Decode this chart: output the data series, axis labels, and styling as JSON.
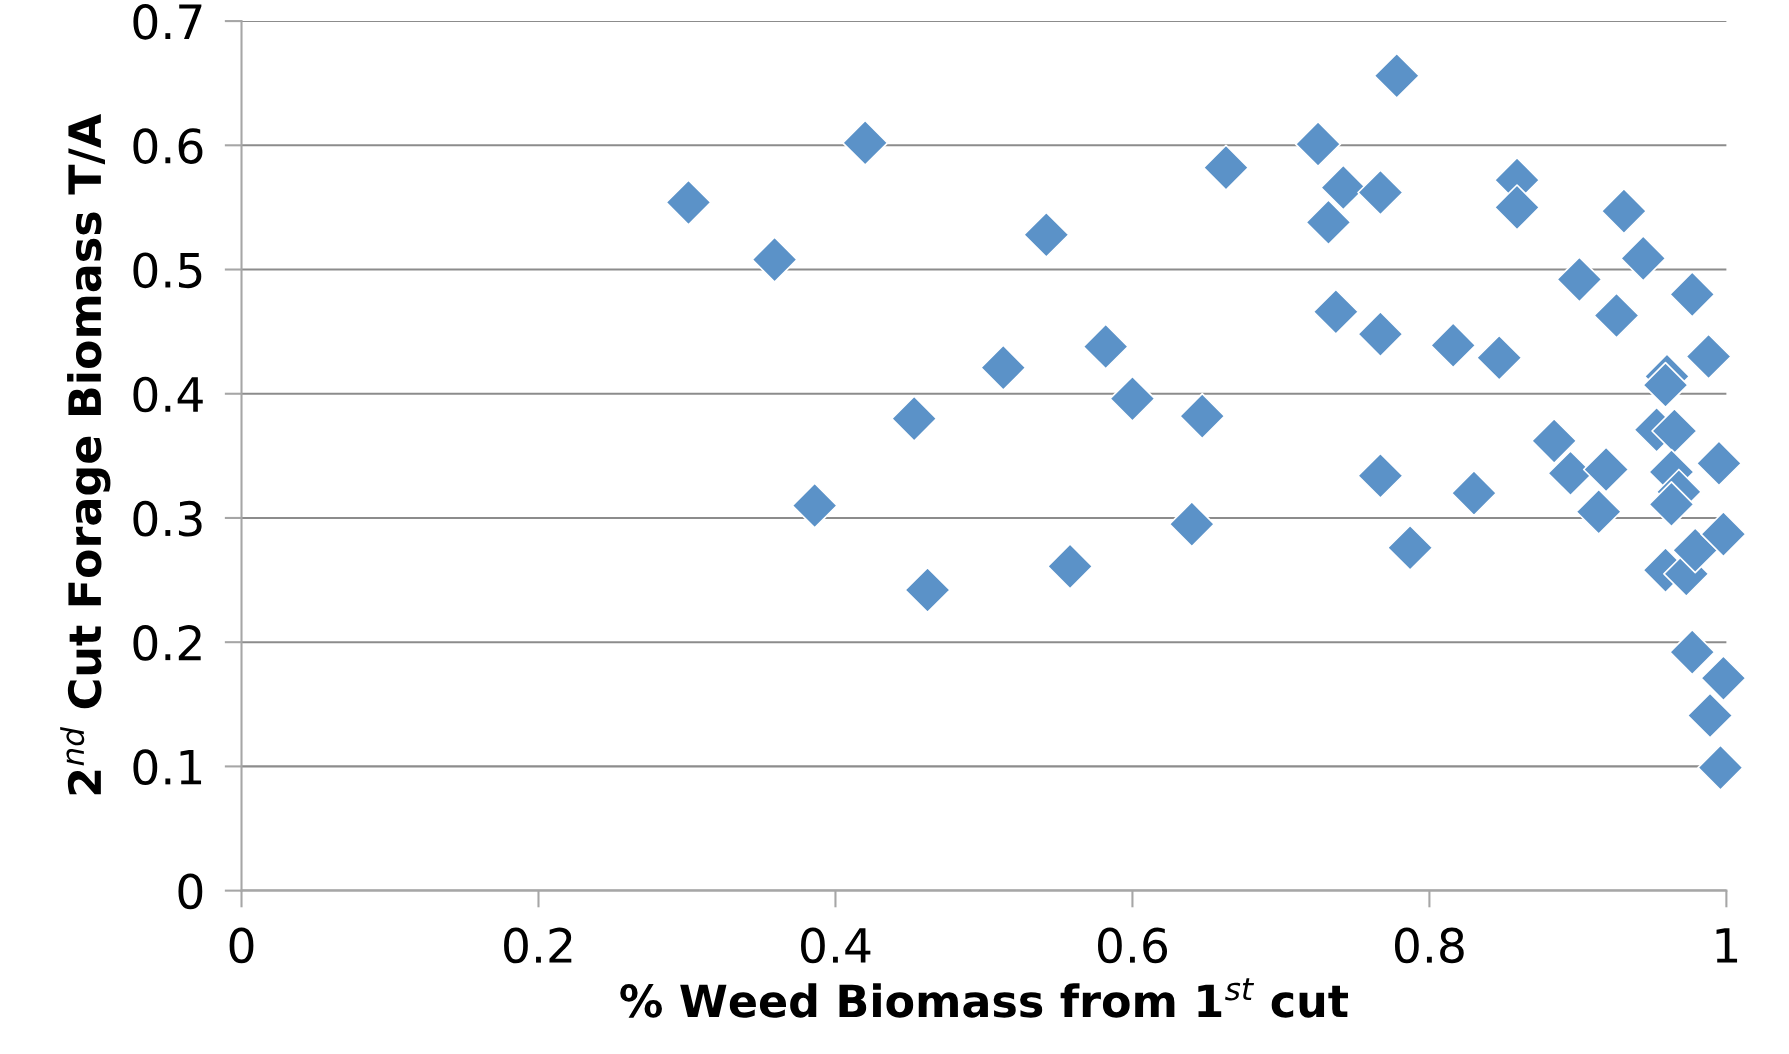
{
  "chart_data": {
    "type": "scatter",
    "xlabel": "% Weed Biomass from 1$^{st}$ cut",
    "ylabel": "2$^{nd}$ Cut Forage Biomass T/A",
    "x": [
      0.301,
      0.359,
      0.386,
      0.42,
      0.453,
      0.462,
      0.513,
      0.542,
      0.558,
      0.582,
      0.6,
      0.64,
      0.647,
      0.663,
      0.725,
      0.732,
      0.742,
      0.737,
      0.767,
      0.767,
      0.767,
      0.778,
      0.787,
      0.816,
      0.83,
      0.847,
      0.859,
      0.859,
      0.884,
      0.895,
      0.901,
      0.914,
      0.919,
      0.926,
      0.931,
      0.944,
      0.953,
      0.96,
      0.959,
      0.965,
      0.963,
      0.968,
      0.963,
      0.959,
      0.973,
      0.979,
      0.977,
      0.977,
      0.988,
      0.989,
      0.995,
      0.998,
      0.998,
      0.996
    ],
    "values": [
      0.554,
      0.508,
      0.31,
      0.602,
      0.38,
      0.242,
      0.421,
      0.528,
      0.261,
      0.438,
      0.396,
      0.295,
      0.382,
      0.582,
      0.601,
      0.538,
      0.566,
      0.466,
      0.562,
      0.448,
      0.334,
      0.656,
      0.276,
      0.439,
      0.32,
      0.429,
      0.572,
      0.55,
      0.362,
      0.336,
      0.492,
      0.305,
      0.339,
      0.463,
      0.547,
      0.509,
      0.371,
      0.414,
      0.407,
      0.37,
      0.337,
      0.321,
      0.311,
      0.258,
      0.255,
      0.274,
      0.48,
      0.192,
      0.43,
      0.141,
      0.344,
      0.171,
      0.287,
      0.099
    ],
    "color": "#5b92c8",
    "marker": "diamond",
    "xlim": [
      0,
      1
    ],
    "xticks": [
      0,
      0.2,
      0.4,
      0.6,
      0.8,
      1
    ],
    "ylim": [
      0,
      0.7
    ],
    "yticks": [
      0,
      0.1,
      0.2,
      0.3,
      0.4,
      0.5,
      0.6,
      0.7
    ],
    "grid": "y"
  }
}
